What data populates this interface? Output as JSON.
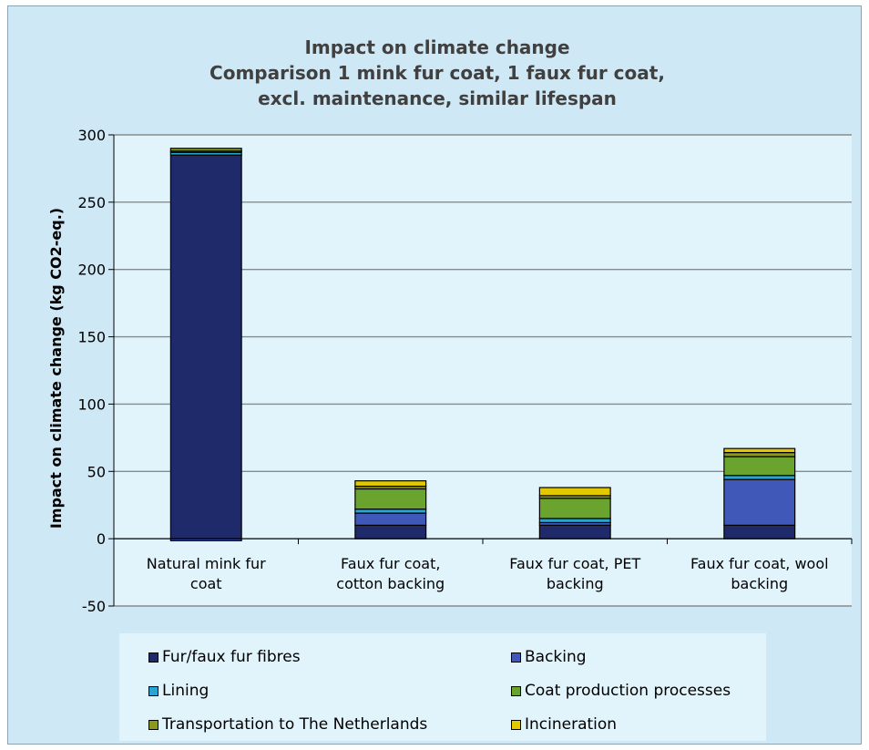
{
  "chart_data": {
    "type": "bar",
    "stacked": true,
    "title_lines": [
      "Impact on climate change",
      "Comparison 1 mink fur coat, 1 faux fur coat,",
      "excl. maintenance, similar lifespan"
    ],
    "ylabel": "Impact on climate change (kg CO2-eq.)",
    "ylim": [
      -50,
      300
    ],
    "yticks": [
      -50,
      0,
      50,
      100,
      150,
      200,
      250,
      300
    ],
    "grid": true,
    "legend_position": "bottom",
    "categories": [
      [
        "Natural mink fur",
        "coat"
      ],
      [
        "Faux fur coat,",
        "cotton backing"
      ],
      [
        "Faux fur coat, PET",
        "backing"
      ],
      [
        "Faux fur coat, wool",
        "backing"
      ]
    ],
    "series": [
      {
        "name": "Fur/faux fur fibres",
        "color": "#1f2a6b",
        "values": [
          285,
          10,
          10,
          10
        ]
      },
      {
        "name": "Backing",
        "color": "#4058b8",
        "values": [
          -1.5,
          9,
          2,
          34
        ]
      },
      {
        "name": "Lining",
        "color": "#2aa5d0",
        "values": [
          2,
          3,
          3,
          3
        ]
      },
      {
        "name": "Coat production processes",
        "color": "#6aa32e",
        "values": [
          1,
          15,
          15,
          14
        ]
      },
      {
        "name": "Transportation to The Netherlands",
        "color": "#8a9a1e",
        "values": [
          2,
          2,
          2,
          3
        ]
      },
      {
        "name": "Incineration",
        "color": "#e3c800",
        "values": [
          0,
          4,
          6,
          3
        ]
      }
    ]
  },
  "legend": {
    "items": [
      {
        "label": "Fur/faux fur fibres",
        "color": "#1f2a6b"
      },
      {
        "label": "Backing",
        "color": "#4058b8"
      },
      {
        "label": "Lining",
        "color": "#2aa5d0"
      },
      {
        "label": "Coat production processes",
        "color": "#6aa32e"
      },
      {
        "label": "Transportation to The Netherlands",
        "color": "#8a9a1e"
      },
      {
        "label": "Incineration",
        "color": "#e3c800"
      }
    ]
  }
}
